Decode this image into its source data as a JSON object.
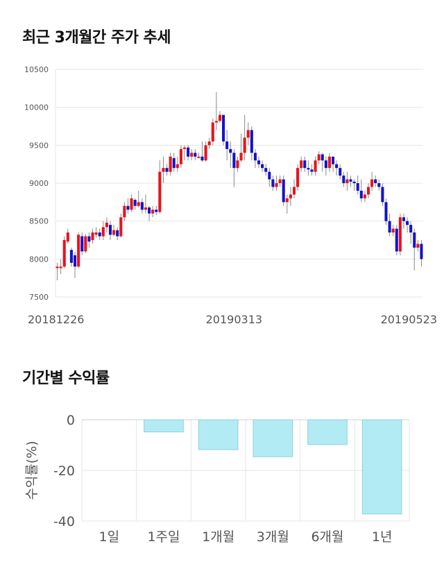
{
  "section1_title": "최근 3개월간 주가 추세",
  "section2_title": "기간별 수익률",
  "colors": {
    "up": "#e8141b",
    "down": "#1414c8",
    "bar": "#b3ebf4",
    "bar_stroke": "#90cfdb",
    "grid": "#e6e6e6"
  },
  "chart_data": [
    {
      "type": "candlestick",
      "ylim": [
        7500,
        10500
      ],
      "yticks": [
        7500,
        8000,
        8500,
        9000,
        9500,
        10000,
        10500
      ],
      "xlabels": [
        {
          "label": "20181226",
          "index": 0
        },
        {
          "label": "20190313",
          "index": 50
        },
        {
          "label": "20190523",
          "index": 99
        }
      ],
      "candles": [
        [
          7880,
          7900,
          7720,
          7950
        ],
        [
          7880,
          7900,
          7800,
          8000
        ],
        [
          7900,
          8250,
          7880,
          8300
        ],
        [
          8230,
          8350,
          8200,
          8400
        ],
        [
          8120,
          7950,
          7900,
          8150
        ],
        [
          8050,
          7900,
          7750,
          8100
        ],
        [
          7900,
          8320,
          7880,
          8350
        ],
        [
          8300,
          8100,
          8050,
          8350
        ],
        [
          8100,
          8300,
          8080,
          8330
        ],
        [
          8300,
          8230,
          8150,
          8350
        ],
        [
          8250,
          8350,
          8200,
          8400
        ],
        [
          8320,
          8350,
          8280,
          8420
        ],
        [
          8350,
          8300,
          8250,
          8400
        ],
        [
          8300,
          8420,
          8250,
          8500
        ],
        [
          8420,
          8480,
          8350,
          8550
        ],
        [
          8450,
          8320,
          8250,
          8500
        ],
        [
          8320,
          8380,
          8300,
          8450
        ],
        [
          8380,
          8300,
          8250,
          8420
        ],
        [
          8300,
          8550,
          8280,
          8600
        ],
        [
          8550,
          8700,
          8500,
          8750
        ],
        [
          8700,
          8650,
          8600,
          8800
        ],
        [
          8650,
          8800,
          8620,
          8850
        ],
        [
          8780,
          8700,
          8650,
          8800
        ],
        [
          8700,
          8750,
          8680,
          8900
        ],
        [
          8750,
          8650,
          8600,
          8800
        ],
        [
          8650,
          8680,
          8600,
          8850
        ],
        [
          8680,
          8600,
          8500,
          8700
        ],
        [
          8600,
          8650,
          8550,
          8700
        ],
        [
          8650,
          8620,
          8580,
          8700
        ],
        [
          8620,
          9150,
          8600,
          9300
        ],
        [
          9150,
          9200,
          9000,
          9350
        ],
        [
          9200,
          9150,
          9100,
          9250
        ],
        [
          9150,
          9350,
          9100,
          9400
        ],
        [
          9330,
          9200,
          9150,
          9400
        ],
        [
          9200,
          9250,
          9150,
          9350
        ],
        [
          9250,
          9450,
          9200,
          9500
        ],
        [
          9450,
          9470,
          9300,
          9500
        ],
        [
          9470,
          9350,
          9300,
          9500
        ],
        [
          9350,
          9400,
          9300,
          9450
        ],
        [
          9400,
          9350,
          9300,
          9450
        ],
        [
          9350,
          9350,
          9330,
          9400
        ],
        [
          9350,
          9300,
          9280,
          9550
        ],
        [
          9300,
          9500,
          9280,
          9550
        ],
        [
          9500,
          9550,
          9450,
          9600
        ],
        [
          9550,
          9800,
          9500,
          9850
        ],
        [
          9800,
          9820,
          9700,
          10200
        ],
        [
          9820,
          9900,
          9800,
          9950
        ],
        [
          9900,
          9550,
          9500,
          9900
        ],
        [
          9550,
          9450,
          9300,
          9700
        ],
        [
          9450,
          9400,
          9200,
          9550
        ],
        [
          9400,
          9200,
          8950,
          9450
        ],
        [
          9200,
          9300,
          9150,
          9350
        ],
        [
          9300,
          9400,
          9280,
          9650
        ],
        [
          9400,
          9600,
          9300,
          9900
        ],
        [
          9600,
          9700,
          9500,
          9800
        ],
        [
          9700,
          9400,
          9300,
          9750
        ],
        [
          9400,
          9300,
          9200,
          9450
        ],
        [
          9300,
          9250,
          9200,
          9350
        ],
        [
          9250,
          9200,
          9150,
          9300
        ],
        [
          9200,
          9150,
          9100,
          9250
        ],
        [
          9150,
          9050,
          8950,
          9200
        ],
        [
          9050,
          8950,
          8900,
          9100
        ],
        [
          8950,
          9000,
          8900,
          9100
        ],
        [
          9000,
          9050,
          8950,
          9100
        ],
        [
          9050,
          8750,
          8700,
          9100
        ],
        [
          8750,
          8800,
          8600,
          8850
        ],
        [
          8800,
          8850,
          8700,
          8950
        ],
        [
          8850,
          8950,
          8800,
          9050
        ],
        [
          8950,
          9200,
          8900,
          9250
        ],
        [
          9200,
          9300,
          9150,
          9350
        ],
        [
          9300,
          9200,
          9150,
          9350
        ],
        [
          9200,
          9180,
          9100,
          9300
        ],
        [
          9180,
          9150,
          9100,
          9250
        ],
        [
          9150,
          9300,
          9100,
          9350
        ],
        [
          9300,
          9380,
          9250,
          9420
        ],
        [
          9380,
          9300,
          9150,
          9400
        ],
        [
          9300,
          9200,
          9100,
          9350
        ],
        [
          9200,
          9350,
          9150,
          9400
        ],
        [
          9350,
          9250,
          9150,
          9350
        ],
        [
          9250,
          9200,
          9100,
          9300
        ],
        [
          9200,
          9100,
          9050,
          9250
        ],
        [
          9100,
          9000,
          8950,
          9150
        ],
        [
          9000,
          9050,
          8900,
          9150
        ],
        [
          9050,
          9020,
          8950,
          9100
        ],
        [
          9020,
          9000,
          8900,
          9050
        ],
        [
          9000,
          8900,
          8850,
          9100
        ],
        [
          8900,
          8800,
          8750,
          9050
        ],
        [
          8800,
          8850,
          8750,
          8900
        ],
        [
          8850,
          8950,
          8800,
          9000
        ],
        [
          8950,
          9050,
          8900,
          9150
        ],
        [
          9050,
          9000,
          8950,
          9100
        ],
        [
          9000,
          8950,
          8900,
          9050
        ],
        [
          8950,
          8750,
          8700,
          9000
        ],
        [
          8750,
          8500,
          8450,
          8800
        ],
        [
          8500,
          8350,
          8300,
          8600
        ],
        [
          8350,
          8400,
          8300,
          8450
        ],
        [
          8400,
          8100,
          8050,
          8450
        ],
        [
          8100,
          8550,
          8050,
          8600
        ],
        [
          8550,
          8500,
          8400,
          8600
        ],
        [
          8500,
          8450,
          8350,
          8550
        ],
        [
          8450,
          8350,
          8200,
          8500
        ],
        [
          8350,
          8150,
          7850,
          8400
        ],
        [
          8150,
          8200,
          8100,
          8250
        ],
        [
          8200,
          8000,
          7900,
          8250
        ]
      ]
    },
    {
      "type": "bar",
      "ylabel": "수익률(%)",
      "ylim": [
        -40,
        0
      ],
      "yticks": [
        0,
        -20,
        -40
      ],
      "categories": [
        "1일",
        "1주일",
        "1개월",
        "3개월",
        "6개월",
        "1년"
      ],
      "values": [
        0,
        -4.8,
        -11.8,
        -14.6,
        -9.8,
        -37.2
      ]
    }
  ]
}
